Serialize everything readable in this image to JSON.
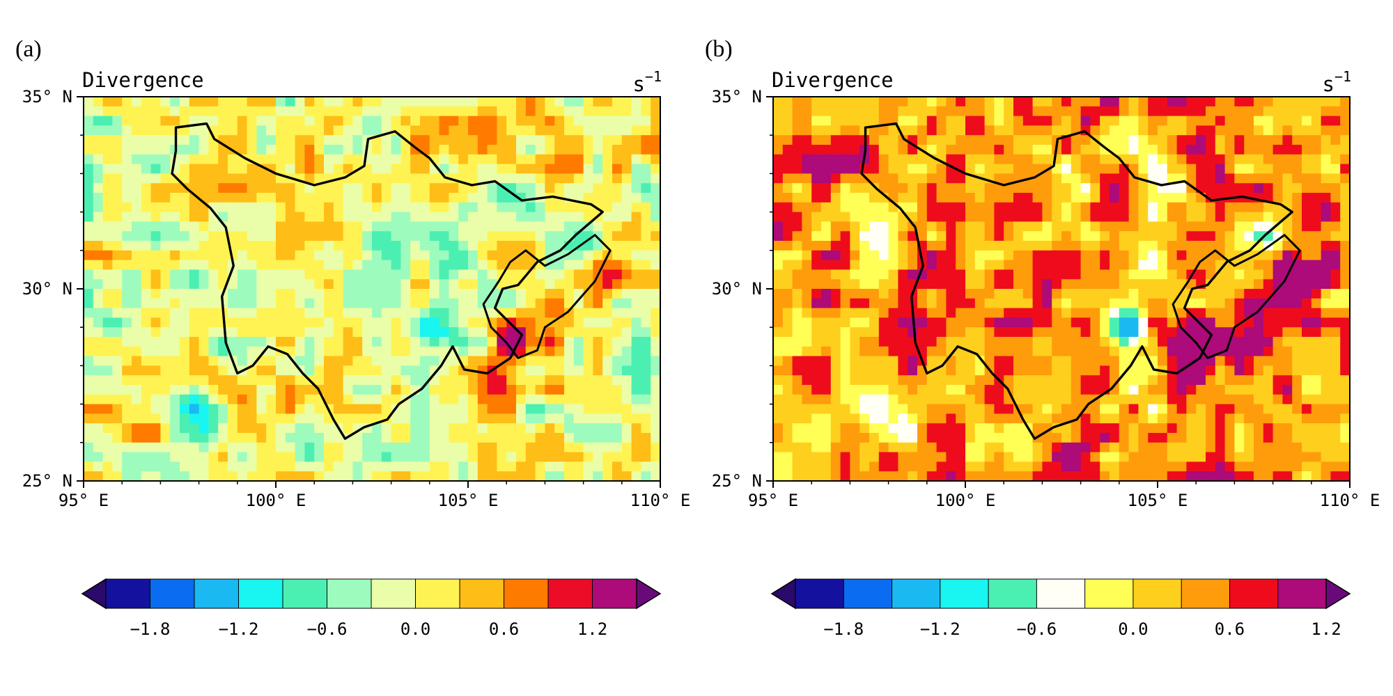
{
  "panels": [
    {
      "letter": "(a)",
      "title": "Divergence",
      "units_base": "s",
      "units_exp": "−1",
      "colorbar_colors": [
        "#14119e",
        "#0a6cf0",
        "#1ab9f2",
        "#19f5f0",
        "#4cefb2",
        "#9efbbe",
        "#eafea9",
        "#fff353",
        "#ffbd17",
        "#ff7b00",
        "#ec0c27",
        "#ad0a7a"
      ],
      "colorbar_ticks": [
        "−1.8",
        "−1.2",
        "−0.6",
        "0.0",
        "0.6",
        "1.2"
      ],
      "tint": 0.0
    },
    {
      "letter": "(b)",
      "title": "Divergence",
      "units_base": "s",
      "units_exp": "−1",
      "colorbar_colors": [
        "#14119e",
        "#0a6cf0",
        "#1ab9f2",
        "#19f5f0",
        "#4cefb2",
        "#fffff5",
        "#ffff55",
        "#ffcf1e",
        "#ff9c0b",
        "#ee0c1c",
        "#ad0a7a"
      ],
      "colorbar_ticks": [
        "−1.8",
        "−1.2",
        "−0.6",
        "0.0",
        "0.6",
        "1.2"
      ],
      "tint": 1.0
    }
  ],
  "axes": {
    "lat_labels": [
      "35° N",
      "30° N",
      "25° N"
    ],
    "lon_labels": [
      "95° E",
      "100° E",
      "105° E",
      "110° E"
    ],
    "lat_range": [
      25,
      35
    ],
    "lon_range": [
      95,
      110
    ]
  }
}
